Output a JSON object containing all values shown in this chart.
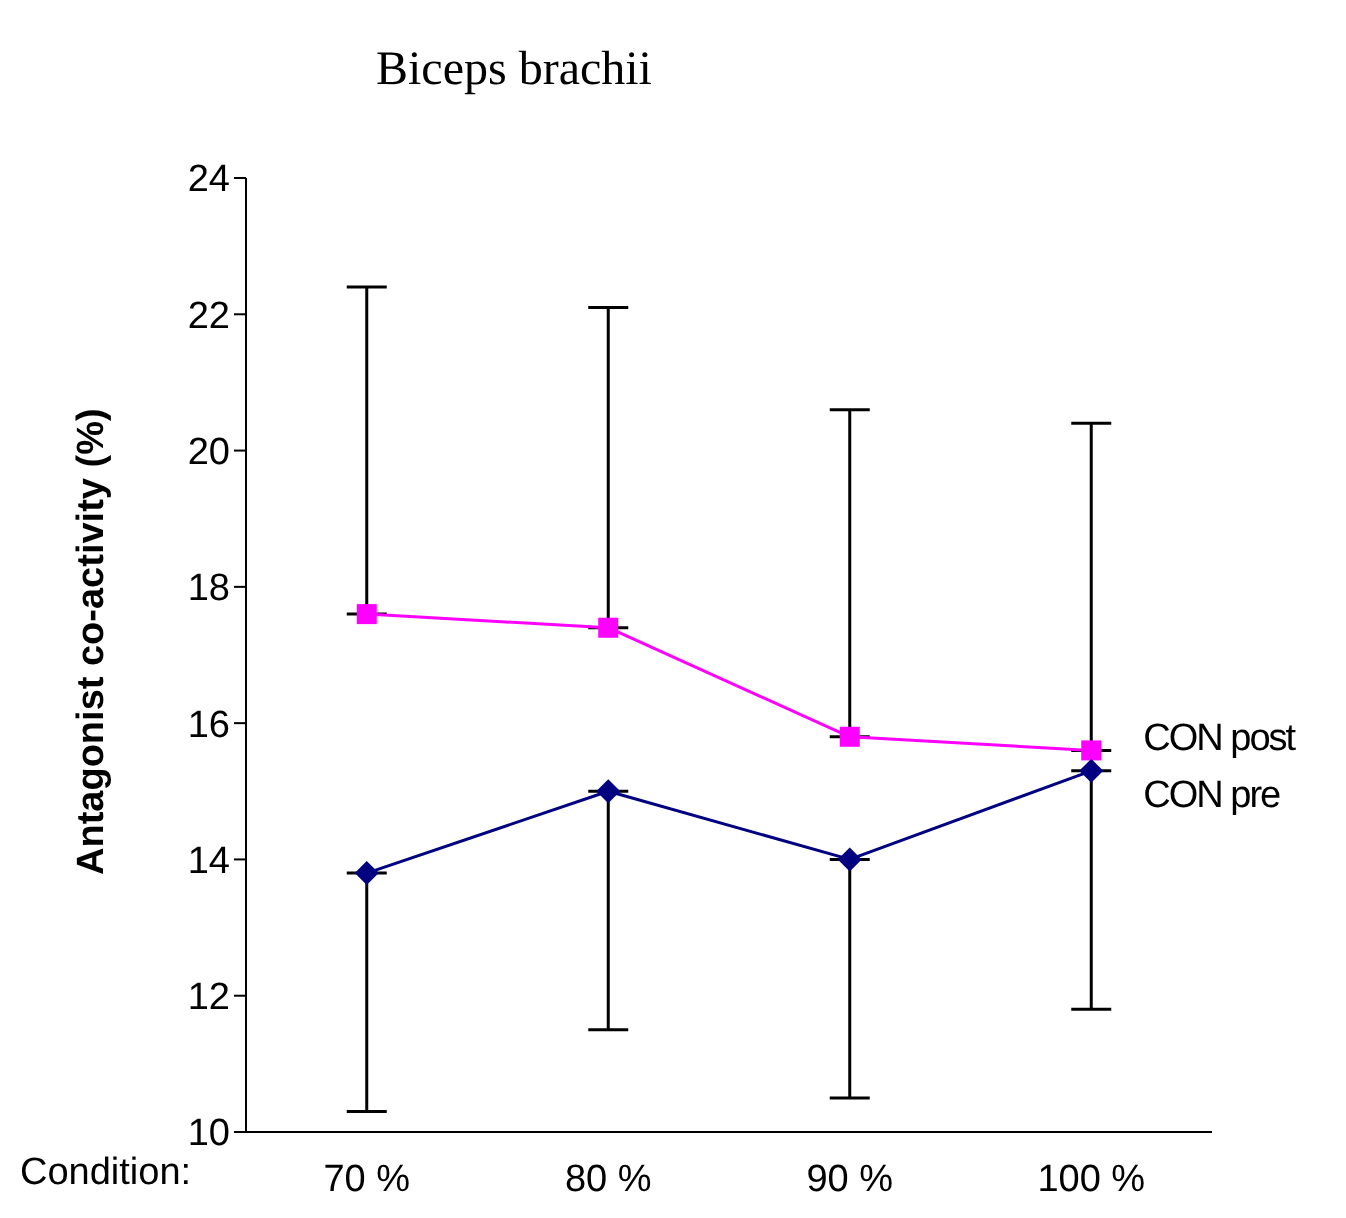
{
  "chart_data": {
    "type": "line",
    "title": "Biceps brachii",
    "xlabel": "Condition:",
    "ylabel": "Antagonist co-activity (%)",
    "categories": [
      "70 %",
      "80 %",
      "90 %",
      "100 %"
    ],
    "series": [
      {
        "name": "CON post",
        "color": "#ff00ff",
        "marker": "square",
        "values": [
          17.6,
          17.4,
          15.8,
          15.6
        ],
        "errors": [
          [
            17.6,
            22.4
          ],
          [
            17.4,
            22.1
          ],
          [
            15.8,
            20.6
          ],
          [
            15.6,
            20.4
          ]
        ]
      },
      {
        "name": "CON pre",
        "color": "#000080",
        "marker": "diamond",
        "values": [
          13.8,
          15.0,
          14.0,
          15.3
        ],
        "errors": [
          [
            10.3,
            13.8
          ],
          [
            11.5,
            15.0
          ],
          [
            10.5,
            14.0
          ],
          [
            11.8,
            15.3
          ]
        ]
      }
    ],
    "ylim": [
      10,
      24
    ],
    "yticks": [
      10,
      12,
      14,
      16,
      18,
      20,
      22,
      24
    ],
    "grid": false,
    "legend": false
  }
}
